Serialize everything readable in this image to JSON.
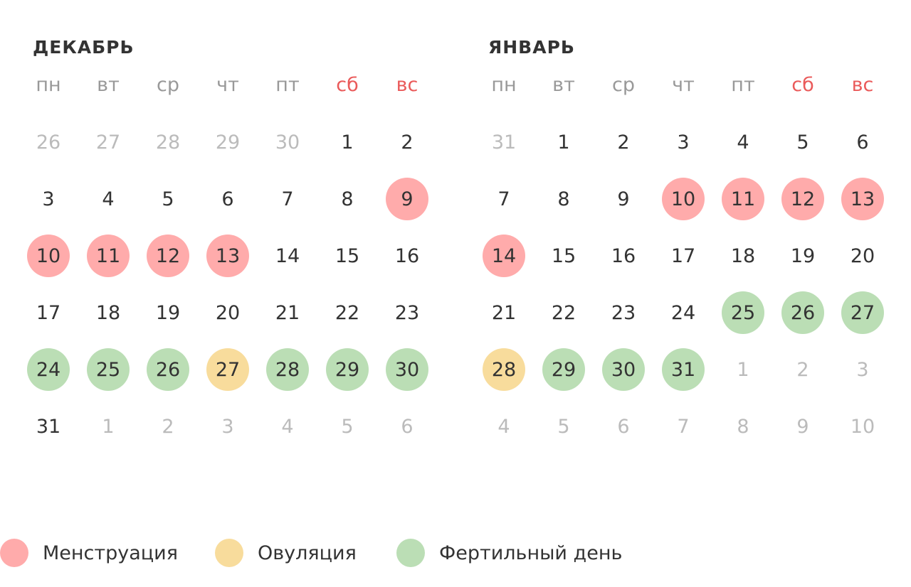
{
  "weekdays": [
    "пн",
    "вт",
    "ср",
    "чт",
    "пт",
    "сб",
    "вс"
  ],
  "weekend_color": "#ea5a5a",
  "colors": {
    "menstruation": "#ffabab",
    "ovulation": "#f8dc9c",
    "fertile": "#bbdeb5"
  },
  "months": [
    {
      "title": "ДЕКАБРЬ",
      "weeks": [
        [
          {
            "d": "26",
            "t": "other"
          },
          {
            "d": "27",
            "t": "other"
          },
          {
            "d": "28",
            "t": "other"
          },
          {
            "d": "29",
            "t": "other"
          },
          {
            "d": "30",
            "t": "other"
          },
          {
            "d": "1",
            "t": ""
          },
          {
            "d": "2",
            "t": ""
          }
        ],
        [
          {
            "d": "3",
            "t": ""
          },
          {
            "d": "4",
            "t": ""
          },
          {
            "d": "5",
            "t": ""
          },
          {
            "d": "6",
            "t": ""
          },
          {
            "d": "7",
            "t": ""
          },
          {
            "d": "8",
            "t": ""
          },
          {
            "d": "9",
            "t": "menstruation"
          }
        ],
        [
          {
            "d": "10",
            "t": "menstruation"
          },
          {
            "d": "11",
            "t": "menstruation"
          },
          {
            "d": "12",
            "t": "menstruation"
          },
          {
            "d": "13",
            "t": "menstruation"
          },
          {
            "d": "14",
            "t": ""
          },
          {
            "d": "15",
            "t": ""
          },
          {
            "d": "16",
            "t": ""
          }
        ],
        [
          {
            "d": "17",
            "t": ""
          },
          {
            "d": "18",
            "t": ""
          },
          {
            "d": "19",
            "t": ""
          },
          {
            "d": "20",
            "t": ""
          },
          {
            "d": "21",
            "t": ""
          },
          {
            "d": "22",
            "t": ""
          },
          {
            "d": "23",
            "t": ""
          }
        ],
        [
          {
            "d": "24",
            "t": "fertile"
          },
          {
            "d": "25",
            "t": "fertile"
          },
          {
            "d": "26",
            "t": "fertile"
          },
          {
            "d": "27",
            "t": "ovulation"
          },
          {
            "d": "28",
            "t": "fertile"
          },
          {
            "d": "29",
            "t": "fertile"
          },
          {
            "d": "30",
            "t": "fertile"
          }
        ],
        [
          {
            "d": "31",
            "t": ""
          },
          {
            "d": "1",
            "t": "other"
          },
          {
            "d": "2",
            "t": "other"
          },
          {
            "d": "3",
            "t": "other"
          },
          {
            "d": "4",
            "t": "other"
          },
          {
            "d": "5",
            "t": "other"
          },
          {
            "d": "6",
            "t": "other"
          }
        ]
      ]
    },
    {
      "title": "ЯНВАРЬ",
      "weeks": [
        [
          {
            "d": "31",
            "t": "other"
          },
          {
            "d": "1",
            "t": ""
          },
          {
            "d": "2",
            "t": ""
          },
          {
            "d": "3",
            "t": ""
          },
          {
            "d": "4",
            "t": ""
          },
          {
            "d": "5",
            "t": ""
          },
          {
            "d": "6",
            "t": ""
          }
        ],
        [
          {
            "d": "7",
            "t": ""
          },
          {
            "d": "8",
            "t": ""
          },
          {
            "d": "9",
            "t": ""
          },
          {
            "d": "10",
            "t": "menstruation"
          },
          {
            "d": "11",
            "t": "menstruation"
          },
          {
            "d": "12",
            "t": "menstruation"
          },
          {
            "d": "13",
            "t": "menstruation"
          }
        ],
        [
          {
            "d": "14",
            "t": "menstruation"
          },
          {
            "d": "15",
            "t": ""
          },
          {
            "d": "16",
            "t": ""
          },
          {
            "d": "17",
            "t": ""
          },
          {
            "d": "18",
            "t": ""
          },
          {
            "d": "19",
            "t": ""
          },
          {
            "d": "20",
            "t": ""
          }
        ],
        [
          {
            "d": "21",
            "t": ""
          },
          {
            "d": "22",
            "t": ""
          },
          {
            "d": "23",
            "t": ""
          },
          {
            "d": "24",
            "t": ""
          },
          {
            "d": "25",
            "t": "fertile"
          },
          {
            "d": "26",
            "t": "fertile"
          },
          {
            "d": "27",
            "t": "fertile"
          }
        ],
        [
          {
            "d": "28",
            "t": "ovulation"
          },
          {
            "d": "29",
            "t": "fertile"
          },
          {
            "d": "30",
            "t": "fertile"
          },
          {
            "d": "31",
            "t": "fertile"
          },
          {
            "d": "1",
            "t": "other"
          },
          {
            "d": "2",
            "t": "other"
          },
          {
            "d": "3",
            "t": "other"
          }
        ],
        [
          {
            "d": "4",
            "t": "other"
          },
          {
            "d": "5",
            "t": "other"
          },
          {
            "d": "6",
            "t": "other"
          },
          {
            "d": "7",
            "t": "other"
          },
          {
            "d": "8",
            "t": "other"
          },
          {
            "d": "9",
            "t": "other"
          },
          {
            "d": "10",
            "t": "other"
          }
        ]
      ]
    }
  ],
  "legend": [
    {
      "key": "menstruation",
      "label": "Менструация"
    },
    {
      "key": "ovulation",
      "label": "Овуляция"
    },
    {
      "key": "fertile",
      "label": "Фертильный день"
    }
  ]
}
